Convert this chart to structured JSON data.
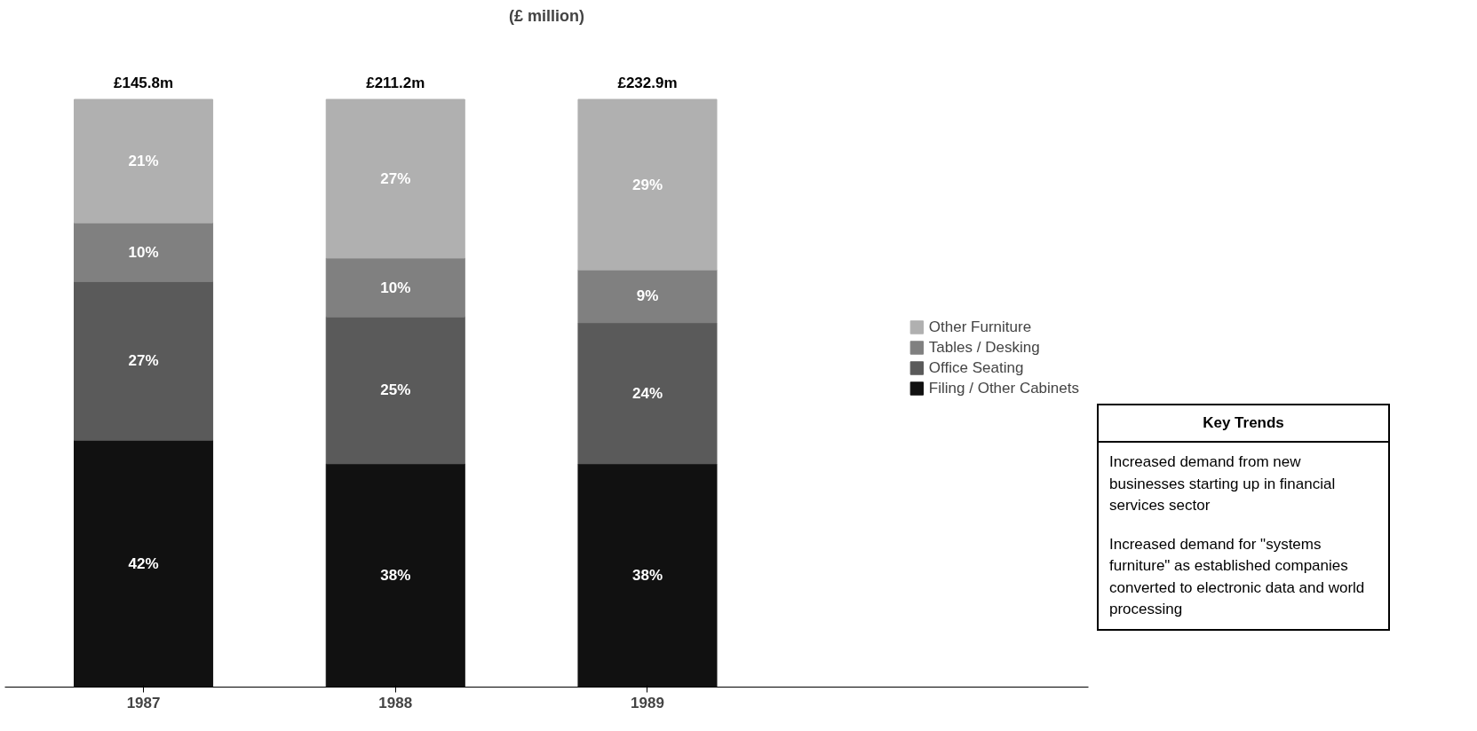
{
  "chart_data": {
    "type": "bar",
    "stacked": true,
    "title": "(£ million)",
    "categories": [
      "1987",
      "1988",
      "1989"
    ],
    "series": [
      {
        "name": "Filing / Other Cabinets",
        "color": "#111111",
        "values": [
          42,
          38,
          38
        ],
        "value_labels": [
          "42%",
          "38%",
          "38%"
        ]
      },
      {
        "name": "Office Seating",
        "color": "#5a5a5a",
        "values": [
          27,
          25,
          24
        ],
        "value_labels": [
          "27%",
          "25%",
          "24%"
        ]
      },
      {
        "name": "Tables / Desking",
        "color": "#808080",
        "values": [
          10,
          10,
          9
        ],
        "value_labels": [
          "10%",
          "10%",
          "9%"
        ]
      },
      {
        "name": "Other Furniture",
        "color": "#b0b0b0",
        "values": [
          21,
          27,
          29
        ],
        "value_labels": [
          "21%",
          "27%",
          "29%"
        ]
      }
    ],
    "tick_labels": "x",
    "grid": false,
    "legend": "right",
    "annotations": [
      {
        "text": "£145.8m",
        "x": "1987",
        "y": 100
      },
      {
        "text": "£211.2m",
        "x": "1988",
        "y": 100
      },
      {
        "text": "£232.9m",
        "x": "1989",
        "y": 100
      },
      "Key Trends",
      "Increased demand from new businesses starting up in financial services sector",
      "Increased demand for \"systems furniture\" as established companies converted to electronic data and world processing"
    ]
  }
}
